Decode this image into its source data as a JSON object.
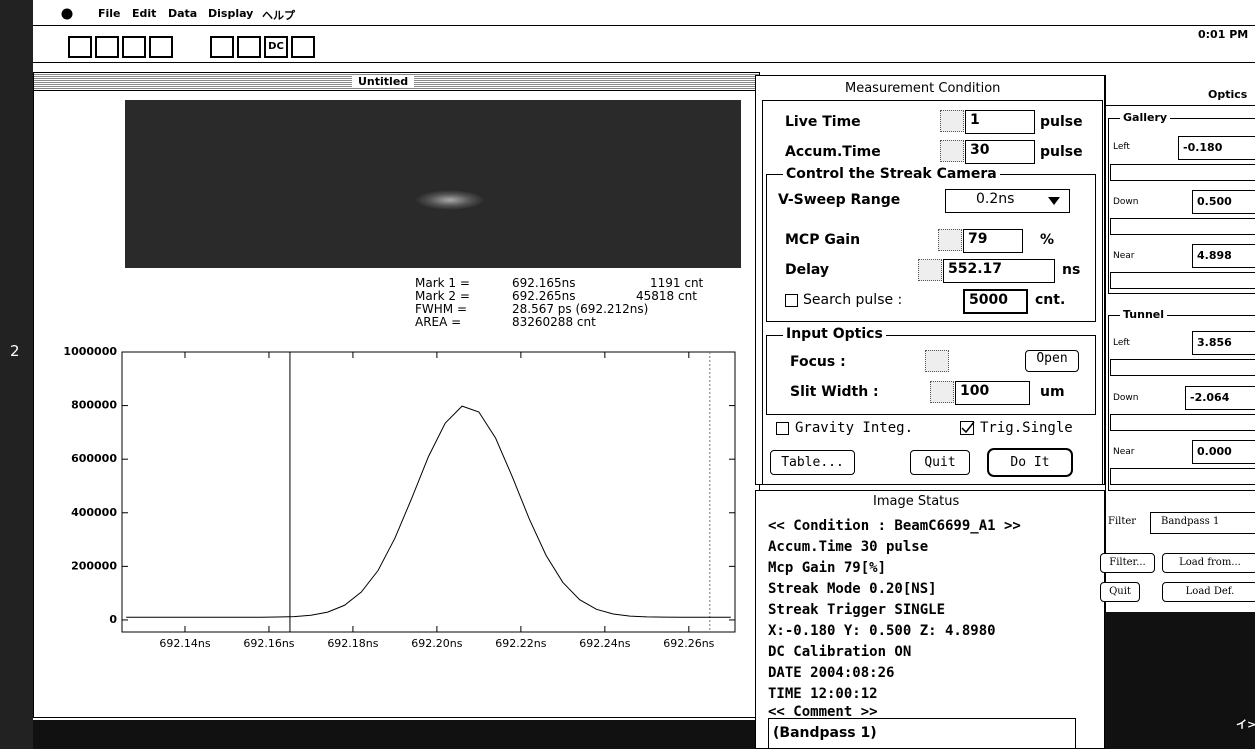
{
  "menu": {
    "items": [
      "File",
      "Edit",
      "Data",
      "Display",
      "ヘルプ"
    ],
    "clock": "0:01 PM"
  },
  "toolbar": {
    "dc": "DC"
  },
  "sidebar": {
    "label": "2"
  },
  "window": {
    "title": "Untitled"
  },
  "marks": {
    "rows": [
      {
        "label": "Mark 1 =",
        "count": "1191 cnt"
      },
      {
        "label": "Mark 2 =",
        "count": "45818 cnt"
      }
    ],
    "fwhm": {
      "label": "FWHM =",
      "value": "28.567 ps (692.212ns)"
    },
    "area": {
      "label": "AREA  =",
      "value": "83260288 cnt"
    }
  },
  "chart_data": {
    "type": "line",
    "color": "#000000",
    "x": [
      692.126,
      692.13,
      692.134,
      692.138,
      692.142,
      692.146,
      692.15,
      692.154,
      692.158,
      692.162,
      692.166,
      692.17,
      692.174,
      692.178,
      692.182,
      692.186,
      692.19,
      692.194,
      692.198,
      692.202,
      692.206,
      692.21,
      692.214,
      692.218,
      692.222,
      692.226,
      692.23,
      692.234,
      692.238,
      692.242,
      692.246,
      692.25,
      692.254,
      692.258,
      692.262,
      692.266,
      692.27
    ],
    "values": [
      10000,
      10000,
      10000,
      10000,
      10000,
      10000,
      10000,
      10000,
      10200,
      10800,
      12500,
      17400,
      29200,
      54800,
      104000,
      185000,
      305000,
      454000,
      610000,
      735000,
      798000,
      776000,
      678000,
      533000,
      377000,
      241000,
      140000,
      75600,
      39700,
      22100,
      14400,
      11400,
      10400,
      10000,
      10000,
      10000,
      10000
    ],
    "xlim": [
      692.125,
      692.271
    ],
    "ylim": [
      -45000,
      1000000
    ],
    "xticks": [
      {
        "value": 692.14,
        "label": "692.14ns"
      },
      {
        "value": 692.16,
        "label": "692.16ns"
      },
      {
        "value": 692.18,
        "label": "692.18ns"
      },
      {
        "value": 692.2,
        "label": "692.20ns"
      },
      {
        "value": 692.22,
        "label": "692.22ns"
      },
      {
        "value": 692.24,
        "label": "692.24ns"
      },
      {
        "value": 692.26,
        "label": "692.26ns"
      }
    ],
    "yticks": [
      0,
      200000,
      400000,
      600000,
      800000,
      1000000
    ],
    "markers": [
      {
        "value": 692.165,
        "label": "692.165ns"
      },
      {
        "value": 692.265,
        "label": "692.265ns"
      }
    ]
  },
  "measurement": {
    "title": "Measurement Condition",
    "live_time": {
      "label": "Live Time",
      "value": "1",
      "unit": "pulse"
    },
    "accum_time": {
      "label": "Accum.Time",
      "value": "30",
      "unit": "pulse"
    },
    "streak_group": "Control the Streak Camera",
    "sweep": {
      "label": "V-Sweep Range",
      "value": "0.2ns"
    },
    "mcp": {
      "label": "MCP Gain",
      "value": "79",
      "unit": "%"
    },
    "delay": {
      "label": "Delay",
      "value": "552.17",
      "unit": "ns"
    },
    "search": {
      "label": "Search pulse :",
      "value": "5000",
      "unit": "cnt."
    },
    "optics_group": "Input Optics",
    "focus": {
      "label": "Focus :",
      "button": "Open"
    },
    "slit": {
      "label": "Slit Width :",
      "value": "100",
      "unit": "um"
    },
    "gravity": "Gravity Integ.",
    "trig": "Trig.Single",
    "buttons": [
      "Table...",
      "Quit",
      "Do It"
    ]
  },
  "image_status": {
    "title": "Image Status",
    "lines": [
      "<< Condition : BeamC6699_A1 >>",
      "Accum.Time  30 pulse",
      "Mcp Gain  79[%]",
      "Streak Mode  0.20[NS]",
      "Streak Trigger SINGLE",
      "X:-0.180 Y: 0.500 Z: 4.8980",
      "DC Calibration ON",
      "DATE 2004:08:26",
      "TIME 12:00:12",
      "<< Comment >>"
    ],
    "comment": "(Bandpass 1)"
  },
  "optics": {
    "title": "Optics",
    "gallery": {
      "title": "Gallery",
      "rows": [
        {
          "label": "Left",
          "value": "-0.180"
        },
        {
          "label": "Down",
          "value": "0.500"
        },
        {
          "label": "Near",
          "value": "4.898"
        }
      ]
    },
    "tunnel": {
      "title": "Tunnel",
      "rows": [
        {
          "label": "Left",
          "value": "3.856"
        },
        {
          "label": "Down",
          "value": "-2.064"
        },
        {
          "label": "Near",
          "value": "0.000"
        }
      ]
    },
    "filter": {
      "label": "Filter",
      "value": "Bandpass 1"
    },
    "buttons": [
      "Filter...",
      "Load from...",
      "Quit",
      "Load Def."
    ],
    "footer": "イ>"
  }
}
